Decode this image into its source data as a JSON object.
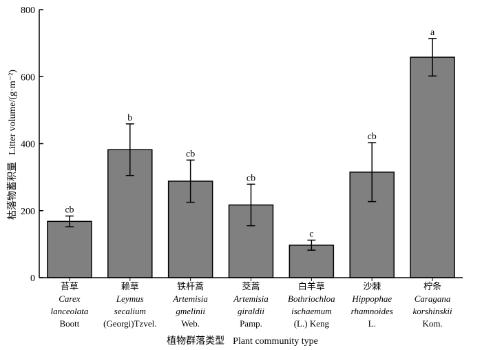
{
  "chart_data": {
    "type": "bar",
    "title": "",
    "ylabel_cn": "枯落物蓄积量",
    "ylabel_en": "Litter volume/(g·m⁻²)",
    "xlabel_cn": "植物群落类型",
    "xlabel_en": "Plant community type",
    "ylim": [
      0,
      800
    ],
    "yticks": [
      0,
      200,
      400,
      600,
      800
    ],
    "ytick_labels": [
      "0",
      "200",
      "400",
      "600",
      "800"
    ],
    "colors": {
      "bar": "#808080",
      "outline": "#000000"
    },
    "categories": [
      {
        "cn": "苔草",
        "latin1": "Carex",
        "latin2": "lanceolata",
        "author": "Boott"
      },
      {
        "cn": "赖草",
        "latin1": "Leymus",
        "latin2": "secalium",
        "author": "(Georgi)Tzvel."
      },
      {
        "cn": "铁杆蒿",
        "latin1": "Artemisia",
        "latin2": "gmelinii",
        "author": "Web."
      },
      {
        "cn": "茭蒿",
        "latin1": "Artemisia",
        "latin2": "giraldii",
        "author": "Pamp."
      },
      {
        "cn": "白羊草",
        "latin1": "Bothriochloa",
        "latin2": "ischaemum",
        "author": "(L.) Keng"
      },
      {
        "cn": "沙棘",
        "latin1": "Hippophae",
        "latin2": "rhamnoides",
        "author": "L."
      },
      {
        "cn": "柠条",
        "latin1": "Caragana",
        "latin2": "korshinskii",
        "author": "Kom."
      }
    ],
    "values": [
      168,
      382,
      288,
      217,
      97,
      315,
      658
    ],
    "errors": [
      16,
      77,
      63,
      62,
      15,
      88,
      56
    ],
    "significance": [
      "cb",
      "b",
      "cb",
      "cb",
      "c",
      "cb",
      "a"
    ]
  }
}
